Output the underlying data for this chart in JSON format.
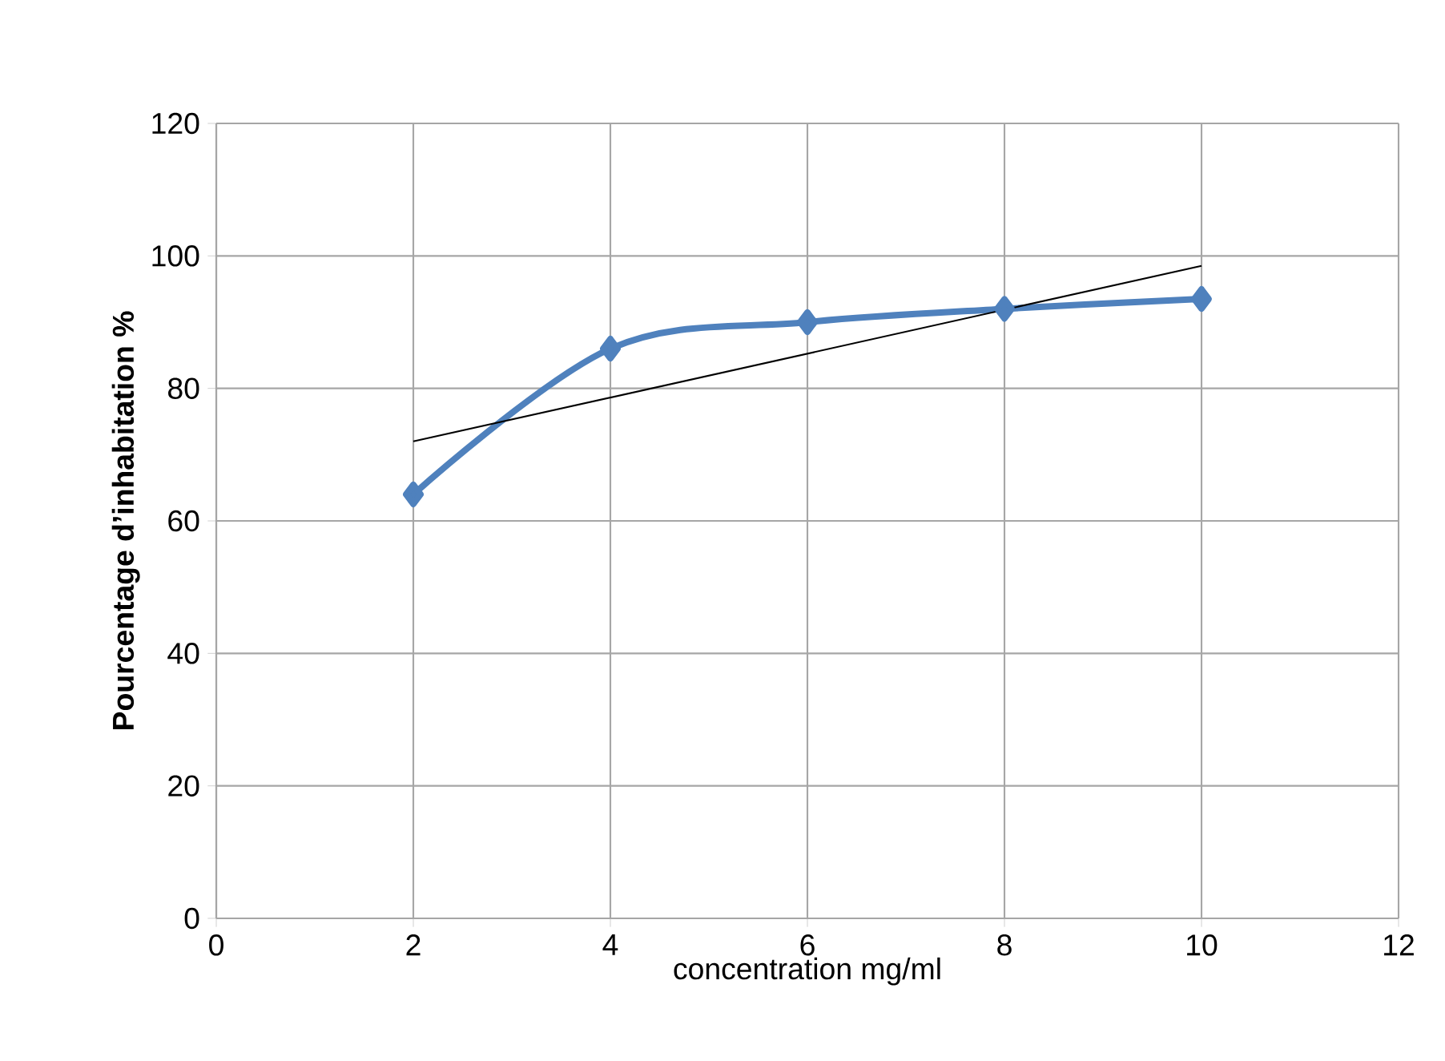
{
  "chart_data": {
    "type": "line",
    "xlabel": "concentration  mg/ml",
    "ylabel": "Pourcentage d’inhabitation %",
    "x": [
      2,
      4,
      6,
      8,
      10
    ],
    "series": [
      {
        "color": "#4f81bd",
        "values": [
          64,
          86,
          90,
          92,
          93.5
        ],
        "marker": "diamond"
      },
      {
        "type": "line",
        "x": [
          2,
          10
        ],
        "color": "#000000",
        "values": [
          72,
          98.5
        ],
        "marker": "none"
      }
    ],
    "xlim": [
      0,
      12
    ],
    "xticks": [
      0,
      2,
      4,
      6,
      8,
      10,
      12
    ],
    "ylim": [
      0,
      120
    ],
    "yticks": [
      0,
      20,
      40,
      60,
      80,
      100,
      120
    ],
    "grid": true
  }
}
